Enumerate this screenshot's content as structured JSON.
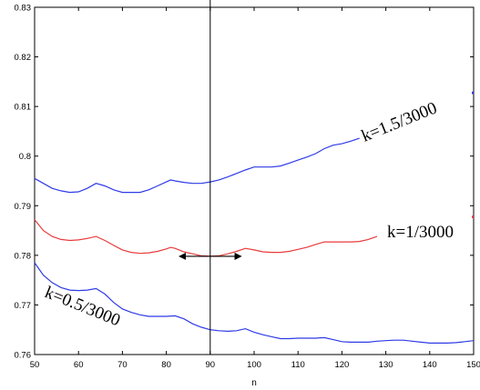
{
  "chart_data": {
    "type": "line",
    "title": "",
    "xlabel": "n",
    "ylabel": "",
    "xlim": [
      50,
      150
    ],
    "ylim": [
      0.76,
      0.83
    ],
    "x_ticks": [
      50,
      60,
      70,
      80,
      90,
      100,
      110,
      120,
      130,
      140,
      150
    ],
    "y_ticks": [
      0.76,
      0.77,
      0.78,
      0.79,
      0.8,
      0.81,
      0.82,
      0.83
    ],
    "x_tick_labels": [
      "50",
      "60",
      "70",
      "80",
      "90",
      "100",
      "110",
      "120",
      "130",
      "140",
      "150"
    ],
    "y_tick_labels": [
      "0.76",
      "0.77",
      "0.78",
      "0.79",
      "0.8",
      "0.81",
      "0.82",
      "0.83"
    ],
    "grid": false,
    "legend": "none",
    "reference_line": {
      "x": 90
    },
    "arrow": {
      "x_start": 83,
      "x_end": 97,
      "y": 0.7798
    },
    "series": [
      {
        "name": "k=1.5/3000",
        "color": "#2f3be6",
        "x": [
          50,
          52,
          54,
          56,
          58,
          60,
          62,
          64,
          66,
          68,
          70,
          72,
          74,
          76,
          78,
          80,
          81,
          82,
          84,
          86,
          88,
          90,
          92,
          94,
          96,
          98,
          100,
          102,
          104,
          106,
          108,
          110,
          112,
          114,
          116,
          118,
          120,
          122,
          124
        ],
        "y": [
          0.7955,
          0.7945,
          0.7935,
          0.793,
          0.7927,
          0.7928,
          0.7935,
          0.7945,
          0.794,
          0.7932,
          0.7927,
          0.7927,
          0.7927,
          0.7932,
          0.794,
          0.7948,
          0.7952,
          0.795,
          0.7947,
          0.7945,
          0.7945,
          0.7948,
          0.7952,
          0.7958,
          0.7965,
          0.7972,
          0.7978,
          0.7978,
          0.7978,
          0.798,
          0.7986,
          0.7992,
          0.7998,
          0.8005,
          0.8015,
          0.8022,
          0.8025,
          0.803,
          0.8036
        ]
      },
      {
        "name": "k=1/3000",
        "color": "#e83b3b",
        "x": [
          50,
          52,
          54,
          56,
          58,
          60,
          62,
          64,
          66,
          68,
          70,
          72,
          74,
          76,
          78,
          80,
          81,
          82,
          84,
          86,
          88,
          90,
          92,
          94,
          96,
          98,
          100,
          102,
          104,
          106,
          108,
          110,
          112,
          114,
          116,
          118,
          120,
          122,
          124,
          126,
          128
        ],
        "y": [
          0.7872,
          0.785,
          0.7838,
          0.7832,
          0.783,
          0.7831,
          0.7834,
          0.7838,
          0.783,
          0.782,
          0.7811,
          0.7806,
          0.7804,
          0.7805,
          0.7808,
          0.7813,
          0.7816,
          0.7814,
          0.7807,
          0.7803,
          0.7799,
          0.7798,
          0.7799,
          0.7803,
          0.7808,
          0.7814,
          0.7811,
          0.7807,
          0.7806,
          0.7806,
          0.7808,
          0.7812,
          0.7816,
          0.7822,
          0.7827,
          0.7827,
          0.7827,
          0.7827,
          0.7828,
          0.7832,
          0.7838
        ]
      },
      {
        "name": "k=0.5/3000",
        "color": "#2f3be6",
        "x": [
          50,
          52,
          54,
          56,
          58,
          60,
          62,
          64,
          66,
          68,
          70,
          72,
          74,
          76,
          78,
          80,
          82,
          84,
          86,
          88,
          90,
          92,
          94,
          96,
          98,
          100,
          102,
          104,
          106,
          108,
          110,
          112,
          114,
          116,
          118,
          120,
          122,
          124,
          126,
          128,
          130,
          132,
          134,
          136,
          138,
          140,
          142,
          144,
          146,
          148,
          150
        ],
        "y": [
          0.7785,
          0.776,
          0.7745,
          0.7735,
          0.773,
          0.7729,
          0.773,
          0.7733,
          0.7722,
          0.7705,
          0.7692,
          0.7685,
          0.768,
          0.7677,
          0.7677,
          0.7677,
          0.7678,
          0.7672,
          0.7662,
          0.7655,
          0.765,
          0.7648,
          0.7647,
          0.7648,
          0.7652,
          0.7645,
          0.764,
          0.7636,
          0.7632,
          0.7632,
          0.7633,
          0.7633,
          0.7633,
          0.7634,
          0.763,
          0.7626,
          0.7625,
          0.7625,
          0.7625,
          0.7627,
          0.7628,
          0.7629,
          0.7629,
          0.7627,
          0.7625,
          0.7623,
          0.7623,
          0.7623,
          0.7624,
          0.7626,
          0.7628
        ]
      }
    ],
    "right_edge_stubs": [
      {
        "color": "#2f3be6",
        "x": 150,
        "y": [
          0.8125,
          0.813
        ]
      },
      {
        "color": "#e83b3b",
        "x": 150,
        "y": [
          0.7875,
          0.788
        ]
      }
    ]
  }
}
